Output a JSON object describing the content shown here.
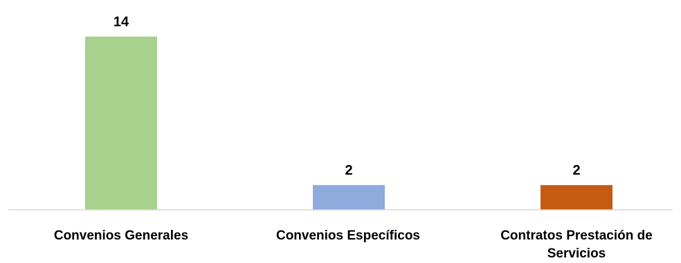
{
  "chart_data": {
    "type": "bar",
    "title": "",
    "xlabel": "",
    "ylabel": "",
    "ylim": [
      0,
      14
    ],
    "grid": false,
    "legend": "none",
    "categories": [
      "Convenios Generales",
      "Convenios Específicos",
      "Contratos Prestación de Servicios"
    ],
    "values": [
      14,
      2,
      2
    ],
    "data_labels": [
      "14",
      "2",
      "2"
    ],
    "colors": [
      "#a9d18e",
      "#8faadc",
      "#c55a11"
    ],
    "axis_color": "#d9d9d9"
  }
}
